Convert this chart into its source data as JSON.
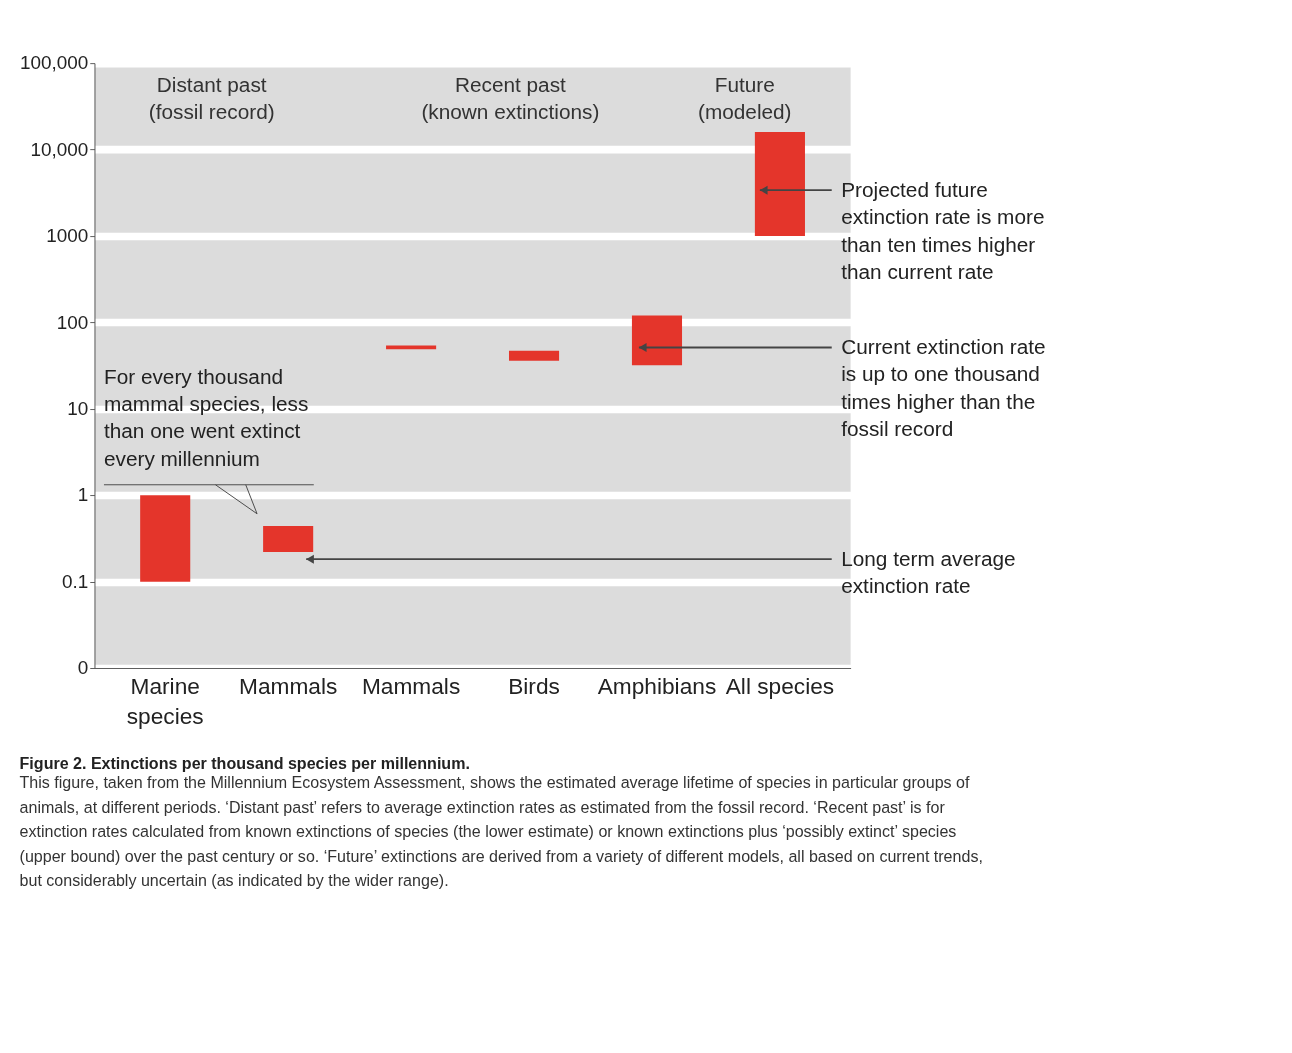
{
  "chart_data": {
    "type": "bar",
    "title": "Figure 2. Extinctions per thousand species per millennium.",
    "subtitle": "This figure, taken from the Millennium Ecosystem Assessment, shows the estimated average lifetime of species in particular groups of animals, at different periods. ‘Distant past’ refers to average extinction rates as estimated from the fossil record. ‘Recent past’ is for extinction rates calculated from known extinctions of species (the lower estimate) or known extinctions plus ‘possibly extinct’ species (upper bound) over the past century or so. ‘Future’ extinctions are derived from a variety of different models, all based on current trends, but considerably uncertain (as indicated by the wider range).",
    "categories": [
      "Marine species",
      "Mammals",
      "Mammals",
      "Birds",
      "Amphibians",
      "All species"
    ],
    "base": [
      0.1,
      0.22,
      49,
      36,
      32,
      1000
    ],
    "values": [
      0.9,
      0.22,
      5,
      11,
      88,
      15000
    ],
    "color": "#e4352b",
    "log": "y",
    "ylim": [
      0.01,
      100000
    ],
    "yticks": [
      {
        "value": 0.01,
        "label": "0"
      },
      0.1,
      1,
      10,
      100,
      1000,
      {
        "value": 10000,
        "label": "10,000"
      },
      {
        "value": 100000,
        "label": "100,000"
      }
    ],
    "grid": "y",
    "annotations": [
      "Distant past\n(fossil record)",
      "Recent past\n(known extinctions)",
      "Future\n(modeled)",
      "Projected future\nextinction rate is more\nthan ten times higher\nthan current rate",
      "Current extinction rate\nis up to one thousand\ntimes higher than the\nfossil record",
      "Long term average\nextinction rate",
      "For every thousand\nmammal species, less\nthan one went extinct\nevery millennium"
    ]
  }
}
